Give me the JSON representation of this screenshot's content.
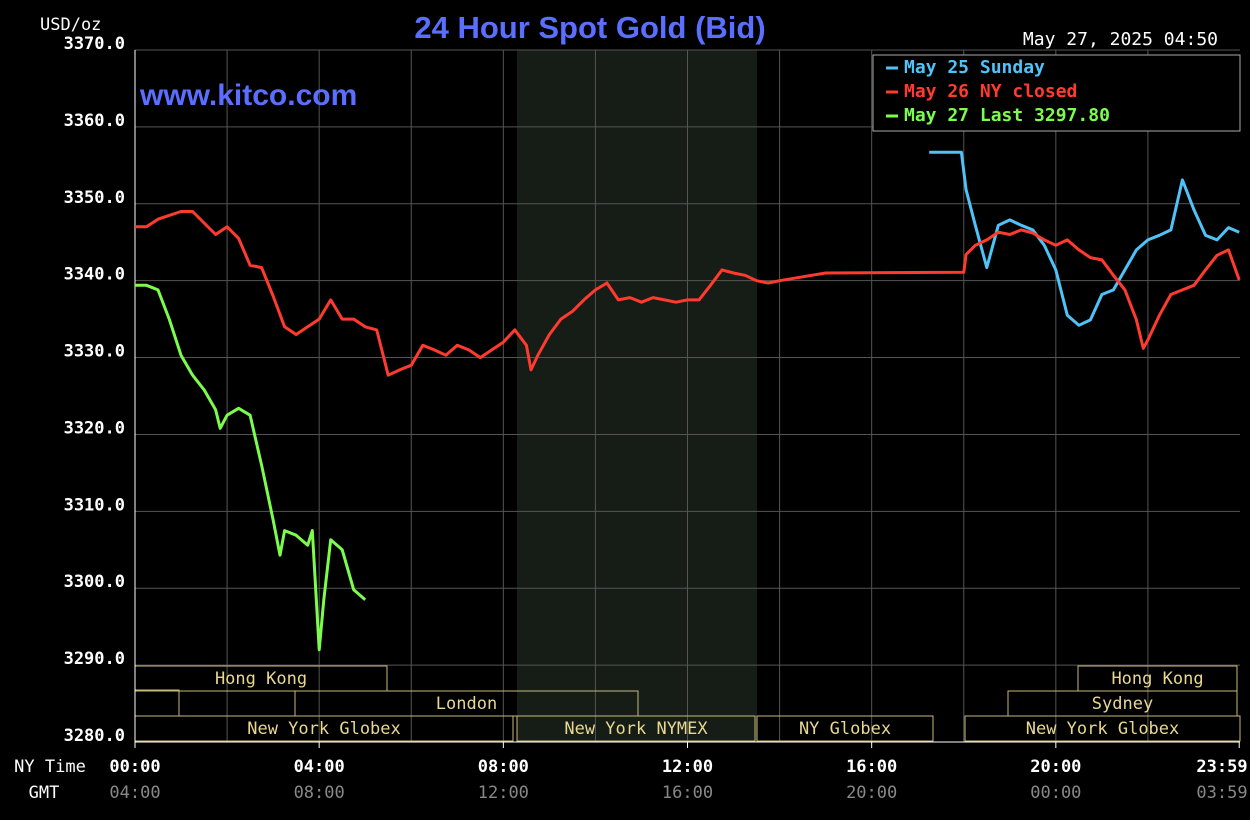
{
  "chart_data": {
    "type": "line",
    "title": "24 Hour Spot Gold (Bid)",
    "timestamp": "May 27, 2025 04:50",
    "watermark": "www.kitco.com",
    "y_label": "USD/oz",
    "x_label": "NY Time",
    "x2_label": "GMT",
    "grid": true,
    "legend": "top-right",
    "xlim": [
      0,
      24
    ],
    "ylim": [
      3280,
      3370
    ],
    "xticks": [
      {
        "value": 0,
        "label": "00:00"
      },
      {
        "value": 4,
        "label": "04:00"
      },
      {
        "value": 8,
        "label": "08:00"
      },
      {
        "value": 12,
        "label": "12:00"
      },
      {
        "value": 16,
        "label": "16:00"
      },
      {
        "value": 20,
        "label": "20:00"
      },
      {
        "value": 23.983,
        "label": "23:59"
      }
    ],
    "gmt_labels": [
      "04:00",
      "08:00",
      "12:00",
      "16:00",
      "20:00",
      "00:00",
      "03:59"
    ],
    "yticks": [
      {
        "value": 3280,
        "label": "3280.0"
      },
      {
        "value": 3290,
        "label": "3290.0"
      },
      {
        "value": 3300,
        "label": "3300.0"
      },
      {
        "value": 3310,
        "label": "3310.0"
      },
      {
        "value": 3320,
        "label": "3320.0"
      },
      {
        "value": 3330,
        "label": "3330.0"
      },
      {
        "value": 3340,
        "label": "3340.0"
      },
      {
        "value": 3350,
        "label": "3350.0"
      },
      {
        "value": 3360,
        "label": "3360.0"
      },
      {
        "value": 3370,
        "label": "3370.0"
      }
    ],
    "sessions": [
      "Hong Kong",
      "London",
      "New York Globex",
      "New York NYMEX",
      "NY Globex",
      "Hong Kong",
      "Sydney",
      "New York Globex"
    ],
    "series": [
      {
        "name": "May 25 Sunday",
        "color": "#4fc3f7",
        "x": [
          17.25,
          17.95,
          18.05,
          18.25,
          18.5,
          18.75,
          19.0,
          19.25,
          19.5,
          19.75,
          20.0,
          20.25,
          20.5,
          20.75,
          21.0,
          21.25,
          21.5,
          21.75,
          22.0,
          22.25,
          22.5,
          22.75,
          23.0,
          23.25,
          23.5,
          23.75,
          23.983
        ],
        "values": [
          3356.7,
          3356.7,
          3351.8,
          3347.2,
          3341.7,
          3347.2,
          3347.9,
          3347.2,
          3346.6,
          3344.6,
          3341.4,
          3335.5,
          3334.2,
          3334.9,
          3338.2,
          3338.8,
          3341.4,
          3344.0,
          3345.3,
          3345.9,
          3346.6,
          3353.1,
          3349.2,
          3345.9,
          3345.3,
          3346.9,
          3346.3
        ]
      },
      {
        "name": "May 26 NY closed",
        "color": "#ff3b2f",
        "x": [
          0,
          0.25,
          0.5,
          0.75,
          1.0,
          1.25,
          1.5,
          1.75,
          2.0,
          2.25,
          2.5,
          2.75,
          3.0,
          3.25,
          3.5,
          3.75,
          4.0,
          4.25,
          4.5,
          4.75,
          5.0,
          5.25,
          5.5,
          5.75,
          6.0,
          6.25,
          6.5,
          6.75,
          7.0,
          7.25,
          7.5,
          7.75,
          8.0,
          8.25,
          8.5,
          8.6,
          8.75,
          9.0,
          9.25,
          9.5,
          9.75,
          10.0,
          10.25,
          10.5,
          10.75,
          11.0,
          11.25,
          11.5,
          11.75,
          12.0,
          12.25,
          12.5,
          12.75,
          13.0,
          13.25,
          13.5,
          13.75,
          14.0,
          14.5,
          15.0,
          18.0,
          18.05,
          18.25,
          18.5,
          18.75,
          19.0,
          19.25,
          19.5,
          19.75,
          20.0,
          20.25,
          20.5,
          20.75,
          21.0,
          21.25,
          21.5,
          21.75,
          21.9,
          22.0,
          22.25,
          22.5,
          22.75,
          23.0,
          23.25,
          23.5,
          23.75,
          23.983
        ],
        "values": [
          3347.0,
          3347.0,
          3348.0,
          3348.5,
          3349.0,
          3349.0,
          3347.5,
          3346.0,
          3347.0,
          3345.5,
          3342.0,
          3341.7,
          3338.0,
          3334.0,
          3333.0,
          3334.0,
          3335.0,
          3337.5,
          3335.0,
          3335.0,
          3334.0,
          3333.6,
          3327.7,
          3328.4,
          3329.0,
          3331.6,
          3331.0,
          3330.3,
          3331.6,
          3331.0,
          3330.0,
          3331.0,
          3332.0,
          3333.6,
          3331.6,
          3328.4,
          3330.3,
          3333.0,
          3335.0,
          3336.0,
          3337.5,
          3338.8,
          3339.7,
          3337.5,
          3337.8,
          3337.2,
          3337.8,
          3337.5,
          3337.2,
          3337.5,
          3337.5,
          3339.4,
          3341.4,
          3341.0,
          3340.7,
          3340.0,
          3339.7,
          3340.0,
          3340.5,
          3341.0,
          3341.1,
          3343.4,
          3344.6,
          3345.3,
          3346.3,
          3346.0,
          3346.6,
          3346.2,
          3345.3,
          3344.6,
          3345.3,
          3344.0,
          3343.0,
          3342.7,
          3340.7,
          3338.8,
          3334.9,
          3331.2,
          3332.3,
          3335.5,
          3338.2,
          3338.8,
          3339.4,
          3341.4,
          3343.3,
          3344.0,
          3340.1
        ]
      },
      {
        "name": "May 27 Last 3297.80",
        "color": "#7cfc4c",
        "x": [
          0,
          0.25,
          0.5,
          0.75,
          1.0,
          1.25,
          1.5,
          1.75,
          1.85,
          2.0,
          2.25,
          2.5,
          2.75,
          3.0,
          3.15,
          3.25,
          3.5,
          3.75,
          3.85,
          4.0,
          4.1,
          4.25,
          4.5,
          4.75,
          5.0
        ],
        "values": [
          3339.4,
          3339.4,
          3338.8,
          3334.9,
          3330.3,
          3327.7,
          3325.8,
          3323.2,
          3320.8,
          3322.5,
          3323.4,
          3322.5,
          3316.0,
          3308.9,
          3304.3,
          3307.5,
          3306.9,
          3305.6,
          3307.5,
          3292.0,
          3298.5,
          3306.3,
          3305.0,
          3299.8,
          3298.5
        ]
      }
    ]
  }
}
